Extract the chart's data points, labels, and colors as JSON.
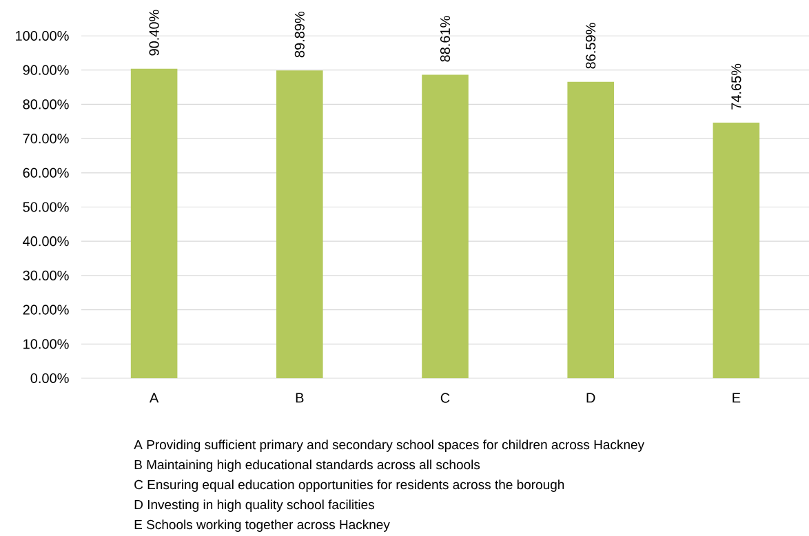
{
  "chart_data": {
    "type": "bar",
    "categories": [
      "A",
      "B",
      "C",
      "D",
      "E"
    ],
    "values": [
      90.4,
      89.89,
      88.61,
      86.59,
      74.65
    ],
    "color": "#b4c95c",
    "value_labels": [
      "90.40%",
      "89.89%",
      "88.61%",
      "86.59%",
      "74.65%"
    ],
    "ylim": [
      0,
      100
    ],
    "yticks": [
      {
        "value": 0,
        "label": "0.00%"
      },
      {
        "value": 10,
        "label": "10.00%"
      },
      {
        "value": 20,
        "label": "20.00%"
      },
      {
        "value": 30,
        "label": "30.00%"
      },
      {
        "value": 40,
        "label": "40.00%"
      },
      {
        "value": 50,
        "label": "50.00%"
      },
      {
        "value": 60,
        "label": "60.00%"
      },
      {
        "value": 70,
        "label": "70.00%"
      },
      {
        "value": 80,
        "label": "80.00%"
      },
      {
        "value": 90,
        "label": "90.00%"
      },
      {
        "value": 100,
        "label": "100.00%"
      }
    ],
    "grid": "y",
    "annotations": [
      "A Providing sufficient primary and secondary school spaces for children across Hackney",
      "B Maintaining high educational standards across all schools",
      "C Ensuring equal education opportunities for residents across the borough",
      "D Investing in high quality school facilities",
      "E Schools working together across Hackney"
    ]
  }
}
